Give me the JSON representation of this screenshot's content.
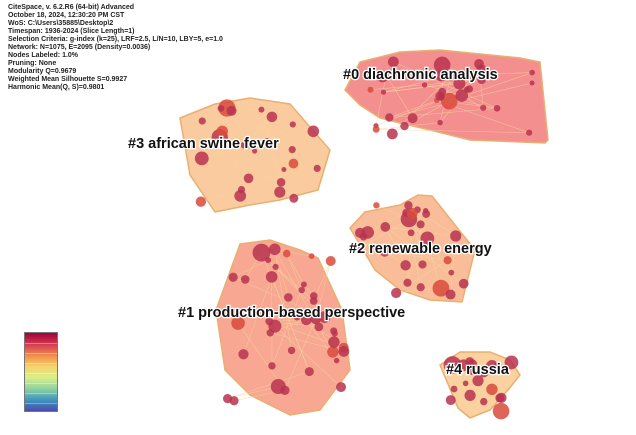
{
  "info_lines": [
    "CiteSpace, v. 6.2.R6 (64-bit) Advanced",
    "October 18, 2024, 12:30:20 PM CST",
    "WoS: C:\\Users\\35885\\Desktop\\2",
    "Timespan: 1936-2024 (Slice Length=1)",
    "Selection Criteria: g-index (k=25), LRF=2.5, L/N=10, LBY=5, e=1.0",
    "Network: N=1075, E=2095 (Density=0.0036)",
    "Nodes Labeled: 1.0%",
    "Pruning: None",
    "Modularity Q=0.9679",
    "Weighted Mean Silhouette S=0.9927",
    "Harmonic Mean(Q, S)=0.9801"
  ],
  "clusters": [
    {
      "label": "#0 diachronic analysis",
      "fill": "#f06a6a"
    },
    {
      "label": "#1 production-based perspective",
      "fill": "#f58a6e"
    },
    {
      "label": "#2 renewable energy",
      "fill": "#f7a877"
    },
    {
      "label": "#3 african swine fever",
      "fill": "#f8b97e"
    },
    {
      "label": "#4 russia",
      "fill": "#f9c27f"
    }
  ],
  "colors": {
    "node": "#b8324f",
    "node_highlight": "#d94a3c",
    "hull_stroke": "#e8b070",
    "edge": "#f3d6a0"
  }
}
